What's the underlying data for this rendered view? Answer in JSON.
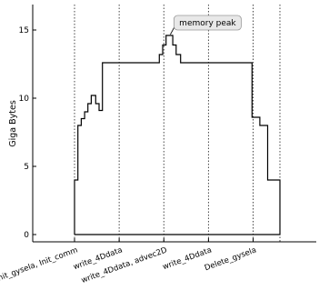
{
  "chart_data": {
    "type": "line",
    "step": true,
    "ylabel": "Giga Bytes",
    "xlabel": "",
    "title": "",
    "ylim": [
      -0.5,
      17.5
    ],
    "xlim": [
      -0.5,
      9.6
    ],
    "yticks": [
      0,
      5,
      10,
      15
    ],
    "grid": false,
    "colors": {
      "line": "#000000",
      "vline": "#333333",
      "annotation_box": "#e8e8e8"
    },
    "vlines": [
      0,
      2,
      4,
      6,
      8,
      9.2
    ],
    "xtick_labels": [
      {
        "x": 0,
        "label": "Init_gysela, Init_comm"
      },
      {
        "x": 2,
        "label": "write_4Ddata"
      },
      {
        "x": 4,
        "label": "write_4Ddata, advec2D"
      },
      {
        "x": 6,
        "label": "write_4Ddata"
      },
      {
        "x": 8,
        "label": "Delete_gysela"
      }
    ],
    "series": [
      {
        "points": [
          [
            0.0,
            0
          ],
          [
            0.0,
            4
          ],
          [
            0.15,
            4
          ],
          [
            0.15,
            8
          ],
          [
            0.3,
            8
          ],
          [
            0.3,
            8.5
          ],
          [
            0.45,
            8.5
          ],
          [
            0.45,
            9.0
          ],
          [
            0.6,
            9.0
          ],
          [
            0.6,
            9.6
          ],
          [
            0.75,
            9.6
          ],
          [
            0.75,
            10.2
          ],
          [
            0.95,
            10.2
          ],
          [
            0.95,
            9.6
          ],
          [
            1.1,
            9.6
          ],
          [
            1.1,
            9.1
          ],
          [
            1.25,
            9.1
          ],
          [
            1.25,
            12.6
          ],
          [
            3.8,
            12.6
          ],
          [
            3.8,
            13.2
          ],
          [
            3.95,
            13.2
          ],
          [
            3.95,
            13.9
          ],
          [
            4.1,
            13.9
          ],
          [
            4.1,
            14.6
          ],
          [
            4.4,
            14.6
          ],
          [
            4.4,
            13.9
          ],
          [
            4.55,
            13.9
          ],
          [
            4.55,
            13.2
          ],
          [
            4.75,
            13.2
          ],
          [
            4.75,
            12.6
          ],
          [
            7.95,
            12.6
          ],
          [
            7.95,
            8.6
          ],
          [
            8.3,
            8.6
          ],
          [
            8.3,
            8.0
          ],
          [
            8.65,
            8.0
          ],
          [
            8.65,
            4.0
          ],
          [
            9.2,
            4.0
          ],
          [
            9.2,
            0
          ],
          [
            0.0,
            0
          ]
        ]
      }
    ],
    "annotation": {
      "text": "memory peak",
      "x": 4.25,
      "y": 14.6
    }
  }
}
